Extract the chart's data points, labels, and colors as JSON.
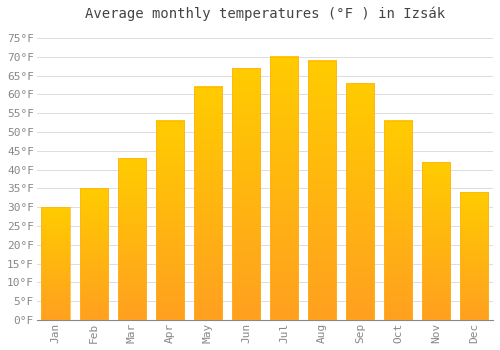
{
  "title": "Average monthly temperatures (°F ) in Izsák",
  "months": [
    "Jan",
    "Feb",
    "Mar",
    "Apr",
    "May",
    "Jun",
    "Jul",
    "Aug",
    "Sep",
    "Oct",
    "Nov",
    "Dec"
  ],
  "values": [
    30,
    35,
    43,
    53,
    62,
    67,
    70,
    69,
    63,
    53,
    42,
    34
  ],
  "bar_color_top": "#FFCC00",
  "bar_color_bottom": "#FFA020",
  "background_color": "#FFFFFF",
  "grid_color": "#DDDDDD",
  "yticks": [
    0,
    5,
    10,
    15,
    20,
    25,
    30,
    35,
    40,
    45,
    50,
    55,
    60,
    65,
    70,
    75
  ],
  "ylim": [
    0,
    78
  ],
  "title_fontsize": 10,
  "tick_fontsize": 8,
  "font_family": "monospace"
}
